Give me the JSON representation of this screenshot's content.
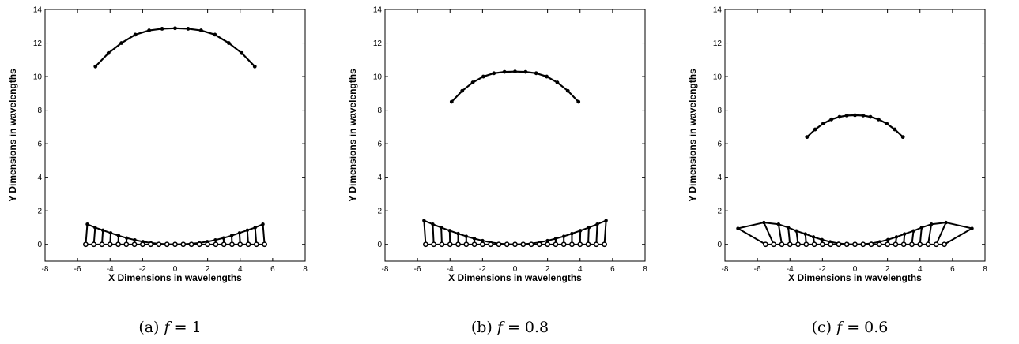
{
  "chart_data": [
    {
      "type": "line",
      "title": "",
      "xlabel": "X Dimensions in wavelengths",
      "ylabel": "Y Dimensions in wavelengths",
      "xlim": [
        -8,
        8
      ],
      "ylim": [
        -1,
        14
      ],
      "xticks": [
        -8,
        -6,
        -4,
        -2,
        0,
        2,
        4,
        6,
        8
      ],
      "yticks": [
        0,
        2,
        4,
        6,
        8,
        10,
        12,
        14
      ],
      "caption_label": "(a)",
      "caption_var": "f",
      "caption_eq": "= 1",
      "upper_arc": {
        "x": [
          -4.9,
          -4.1,
          -3.3,
          -2.45,
          -1.6,
          -0.8,
          0,
          0.8,
          1.6,
          2.45,
          3.3,
          4.1,
          4.9
        ],
        "y": [
          10.6,
          11.4,
          12.0,
          12.5,
          12.75,
          12.85,
          12.88,
          12.85,
          12.75,
          12.5,
          12.0,
          11.4,
          10.6
        ]
      },
      "element_positions_x": [
        -5.5,
        -5.0,
        -4.5,
        -4.0,
        -3.5,
        -3.0,
        -2.5,
        -2.0,
        -1.5,
        -1.0,
        -0.5,
        0,
        0.5,
        1.0,
        1.5,
        2.0,
        2.5,
        3.0,
        3.5,
        4.0,
        4.5,
        5.0,
        5.5
      ],
      "element_offsets": {
        "x": [
          -5.4,
          -4.92,
          -4.44,
          -3.96,
          -3.48,
          -2.98,
          -2.48,
          -1.98,
          -1.49,
          -1.0,
          -0.5,
          0,
          0.5,
          1.0,
          1.49,
          1.98,
          2.48,
          2.98,
          3.48,
          3.96,
          4.44,
          4.92,
          5.4
        ],
        "y": [
          1.2,
          1.0,
          0.84,
          0.68,
          0.52,
          0.38,
          0.26,
          0.16,
          0.09,
          0.04,
          0.01,
          0,
          0.01,
          0.04,
          0.09,
          0.16,
          0.26,
          0.38,
          0.52,
          0.68,
          0.84,
          1.0,
          1.2
        ]
      }
    },
    {
      "type": "line",
      "title": "",
      "xlabel": "X Dimensions in wavelengths",
      "ylabel": "Y Dimensions in wavelengths",
      "xlim": [
        -8,
        8
      ],
      "ylim": [
        -1,
        14
      ],
      "xticks": [
        -8,
        -6,
        -4,
        -2,
        0,
        2,
        4,
        6,
        8
      ],
      "yticks": [
        0,
        2,
        4,
        6,
        8,
        10,
        12,
        14
      ],
      "caption_label": "(b)",
      "caption_var": "f",
      "caption_eq": "= 0.8",
      "upper_arc": {
        "x": [
          -3.9,
          -3.25,
          -2.6,
          -1.95,
          -1.3,
          -0.65,
          0,
          0.65,
          1.3,
          1.95,
          2.6,
          3.25,
          3.9
        ],
        "y": [
          8.5,
          9.15,
          9.65,
          10.0,
          10.2,
          10.28,
          10.3,
          10.28,
          10.2,
          10.0,
          9.65,
          9.15,
          8.5
        ]
      },
      "element_positions_x": [
        -5.5,
        -5.0,
        -4.5,
        -4.0,
        -3.5,
        -3.0,
        -2.5,
        -2.0,
        -1.5,
        -1.0,
        -0.5,
        0,
        0.5,
        1.0,
        1.5,
        2.0,
        2.5,
        3.0,
        3.5,
        4.0,
        4.5,
        5.0,
        5.5
      ],
      "element_offsets": {
        "x": [
          -5.6,
          -5.06,
          -4.54,
          -4.02,
          -3.5,
          -3.0,
          -2.5,
          -2.0,
          -1.5,
          -1.0,
          -0.5,
          0,
          0.5,
          1.0,
          1.5,
          2.0,
          2.5,
          3.0,
          3.5,
          4.02,
          4.54,
          5.06,
          5.6
        ],
        "y": [
          1.42,
          1.2,
          1.0,
          0.82,
          0.64,
          0.48,
          0.34,
          0.22,
          0.12,
          0.05,
          0.01,
          0,
          0.01,
          0.05,
          0.12,
          0.22,
          0.34,
          0.48,
          0.64,
          0.82,
          1.0,
          1.2,
          1.42
        ]
      }
    },
    {
      "type": "line",
      "title": "",
      "xlabel": "X Dimensions in wavelengths",
      "ylabel": "Y Dimensions in wavelengths",
      "xlim": [
        -8,
        8
      ],
      "ylim": [
        -1,
        14
      ],
      "xticks": [
        -8,
        -6,
        -4,
        -2,
        0,
        2,
        4,
        6,
        8
      ],
      "yticks": [
        0,
        2,
        4,
        6,
        8,
        10,
        12,
        14
      ],
      "caption_label": "(c)",
      "caption_var": "f",
      "caption_eq": "= 0.6",
      "upper_arc": {
        "x": [
          -2.95,
          -2.45,
          -1.95,
          -1.45,
          -0.95,
          -0.5,
          0,
          0.5,
          0.95,
          1.45,
          1.95,
          2.45,
          2.95
        ],
        "y": [
          6.4,
          6.85,
          7.2,
          7.45,
          7.6,
          7.68,
          7.7,
          7.68,
          7.6,
          7.45,
          7.2,
          6.85,
          6.4
        ]
      },
      "element_positions_x": [
        -5.5,
        -5.0,
        -4.5,
        -4.0,
        -3.5,
        -3.0,
        -2.5,
        -2.0,
        -1.5,
        -1.0,
        -0.5,
        0,
        0.5,
        1.0,
        1.5,
        2.0,
        2.5,
        3.0,
        3.5,
        4.0,
        4.5,
        5.0,
        5.5
      ],
      "element_offsets": {
        "x": [
          -7.2,
          -5.6,
          -4.7,
          -4.1,
          -3.6,
          -3.05,
          -2.55,
          -2.03,
          -1.52,
          -1.01,
          -0.5,
          0,
          0.5,
          1.01,
          1.52,
          2.03,
          2.55,
          3.05,
          3.6,
          4.1,
          4.7,
          5.6,
          7.2
        ],
        "y": [
          0.95,
          1.3,
          1.2,
          1.0,
          0.8,
          0.62,
          0.44,
          0.28,
          0.15,
          0.06,
          0.01,
          0,
          0.01,
          0.06,
          0.15,
          0.28,
          0.44,
          0.62,
          0.8,
          1.0,
          1.2,
          1.3,
          0.95
        ]
      }
    }
  ]
}
